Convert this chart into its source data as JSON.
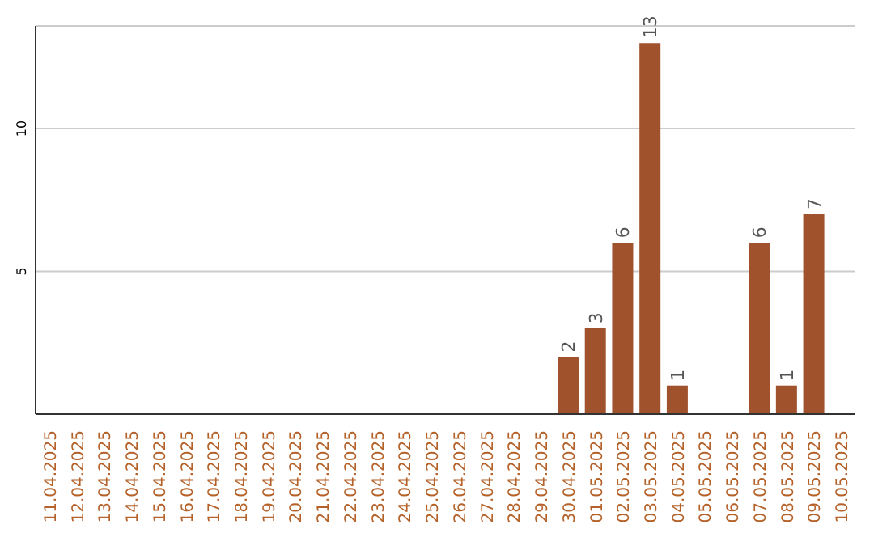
{
  "chart_data": {
    "type": "bar",
    "categories": [
      "11.04.2025",
      "12.04.2025",
      "13.04.2025",
      "14.04.2025",
      "15.04.2025",
      "16.04.2025",
      "17.04.2025",
      "18.04.2025",
      "19.04.2025",
      "20.04.2025",
      "21.04.2025",
      "22.04.2025",
      "23.04.2025",
      "24.04.2025",
      "25.04.2025",
      "26.04.2025",
      "27.04.2025",
      "28.04.2025",
      "29.04.2025",
      "30.04.2025",
      "01.05.2025",
      "02.05.2025",
      "03.05.2025",
      "04.05.2025",
      "05.05.2025",
      "06.05.2025",
      "07.05.2025",
      "08.05.2025",
      "09.05.2025",
      "10.05.2025"
    ],
    "values": [
      null,
      null,
      null,
      null,
      null,
      null,
      null,
      null,
      null,
      null,
      null,
      null,
      null,
      null,
      null,
      null,
      null,
      null,
      null,
      2,
      3,
      6,
      13,
      1,
      null,
      null,
      6,
      1,
      7,
      null
    ],
    "color": "#a0522d",
    "ylim": [
      0,
      13.6
    ],
    "yticks": [
      5,
      10
    ],
    "grid": "y",
    "data_labels": true
  }
}
